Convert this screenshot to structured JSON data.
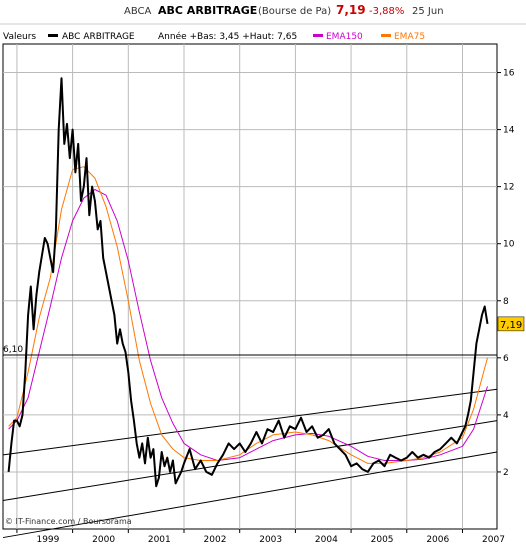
{
  "header": {
    "ticker": "ABCA",
    "name": "ABC ARBITRAGE",
    "market": "(Bourse de Pa)",
    "last": "7,19",
    "change": "-3,88%",
    "date": "25 Jun"
  },
  "legend": {
    "valeurs": "Valeurs",
    "series_name": "ABC ARBITRAGE",
    "range_text": "Année +Bas: 3,45 +Haut: 7,65",
    "ema150": "EMA150",
    "ema75": "EMA75"
  },
  "colors": {
    "price": "#000000",
    "ema150": "#cc00cc",
    "ema75": "#ff7700",
    "last_badge": "#ffcc00",
    "change": "#cc0000",
    "grid": "#999999",
    "header_bg": "#ffffff"
  },
  "credit": "© IT-Finance.com / Boursorama",
  "hline_label": "6,10",
  "last_badge": "7,19",
  "chart_data": {
    "type": "line",
    "x_unit": "year",
    "xlim": [
      1998.75,
      2007.62
    ],
    "ylim": [
      0,
      17
    ],
    "y_ticks": [
      "2",
      "4",
      "6",
      "8",
      "10",
      "12",
      "14",
      "16"
    ],
    "x_ticks": [
      "1999",
      "2000",
      "2001",
      "2002",
      "2003",
      "2004",
      "2005",
      "2006",
      "2007"
    ],
    "horizontal_line": 6.1,
    "grid": true,
    "series": [
      {
        "name": "ABC ARBITRAGE",
        "x": [
          1998.85,
          1998.9,
          1998.95,
          1999.0,
          1999.05,
          1999.1,
          1999.15,
          1999.2,
          1999.25,
          1999.3,
          1999.35,
          1999.4,
          1999.45,
          1999.5,
          1999.55,
          1999.6,
          1999.65,
          1999.7,
          1999.75,
          1999.8,
          1999.85,
          1999.9,
          1999.95,
          2000.0,
          2000.05,
          2000.1,
          2000.15,
          2000.2,
          2000.25,
          2000.3,
          2000.35,
          2000.4,
          2000.45,
          2000.5,
          2000.55,
          2000.6,
          2000.65,
          2000.7,
          2000.75,
          2000.8,
          2000.85,
          2000.9,
          2000.95,
          2001.0,
          2001.05,
          2001.1,
          2001.15,
          2001.2,
          2001.25,
          2001.3,
          2001.35,
          2001.4,
          2001.45,
          2001.5,
          2001.55,
          2001.6,
          2001.65,
          2001.7,
          2001.75,
          2001.8,
          2001.85,
          2001.9,
          2001.95,
          2002.0,
          2002.1,
          2002.2,
          2002.3,
          2002.4,
          2002.5,
          2002.6,
          2002.7,
          2002.8,
          2002.9,
          2003.0,
          2003.1,
          2003.2,
          2003.3,
          2003.4,
          2003.5,
          2003.6,
          2003.7,
          2003.8,
          2003.9,
          2004.0,
          2004.1,
          2004.2,
          2004.3,
          2004.4,
          2004.5,
          2004.6,
          2004.7,
          2004.8,
          2004.9,
          2005.0,
          2005.1,
          2005.2,
          2005.3,
          2005.4,
          2005.5,
          2005.6,
          2005.7,
          2005.8,
          2005.9,
          2006.0,
          2006.1,
          2006.2,
          2006.3,
          2006.4,
          2006.5,
          2006.6,
          2006.7,
          2006.8,
          2006.9,
          2007.0,
          2007.05,
          2007.1,
          2007.15,
          2007.2,
          2007.25,
          2007.3,
          2007.35,
          2007.4,
          2007.45
        ],
        "values": [
          2.0,
          3.0,
          3.8,
          3.8,
          3.6,
          4.0,
          5.5,
          7.5,
          8.5,
          7.0,
          8.2,
          9.0,
          9.6,
          10.2,
          10.0,
          9.5,
          9.0,
          10.5,
          14.0,
          15.8,
          13.5,
          14.2,
          13.0,
          14.0,
          12.5,
          13.5,
          11.5,
          12.0,
          13.0,
          11.0,
          12.0,
          11.5,
          10.5,
          10.8,
          9.5,
          9.0,
          8.5,
          8.0,
          7.5,
          6.5,
          7.0,
          6.5,
          6.2,
          5.5,
          4.5,
          3.8,
          3.0,
          2.5,
          3.0,
          2.3,
          3.2,
          2.5,
          2.8,
          1.5,
          1.8,
          2.7,
          2.2,
          2.5,
          2.0,
          2.4,
          1.6,
          1.8,
          2.0,
          2.3,
          2.8,
          2.1,
          2.4,
          2.0,
          1.9,
          2.3,
          2.6,
          3.0,
          2.8,
          3.0,
          2.7,
          3.0,
          3.4,
          3.0,
          3.5,
          3.4,
          3.8,
          3.2,
          3.6,
          3.5,
          3.9,
          3.4,
          3.6,
          3.2,
          3.3,
          3.5,
          3.0,
          2.8,
          2.6,
          2.2,
          2.3,
          2.1,
          2.0,
          2.3,
          2.4,
          2.2,
          2.6,
          2.5,
          2.4,
          2.5,
          2.7,
          2.5,
          2.6,
          2.5,
          2.7,
          2.8,
          3.0,
          3.2,
          3.0,
          3.4,
          3.6,
          4.0,
          4.5,
          5.5,
          6.5,
          7.0,
          7.5,
          7.8,
          7.19
        ]
      },
      {
        "name": "EMA150",
        "x": [
          1998.85,
          1999.0,
          1999.2,
          1999.4,
          1999.6,
          1999.8,
          2000.0,
          2000.2,
          2000.4,
          2000.6,
          2000.8,
          2001.0,
          2001.2,
          2001.4,
          2001.6,
          2001.8,
          2002.0,
          2002.3,
          2002.6,
          2003.0,
          2003.3,
          2003.6,
          2004.0,
          2004.3,
          2004.6,
          2005.0,
          2005.3,
          2005.6,
          2006.0,
          2006.3,
          2006.6,
          2007.0,
          2007.2,
          2007.45
        ],
        "values": [
          3.5,
          3.8,
          4.6,
          6.2,
          7.8,
          9.5,
          10.8,
          11.6,
          11.9,
          11.7,
          10.8,
          9.4,
          7.6,
          5.9,
          4.6,
          3.7,
          3.0,
          2.6,
          2.4,
          2.5,
          2.8,
          3.1,
          3.3,
          3.35,
          3.25,
          2.9,
          2.55,
          2.4,
          2.4,
          2.45,
          2.6,
          2.9,
          3.5,
          5.0
        ]
      },
      {
        "name": "EMA75",
        "x": [
          1998.85,
          1999.0,
          1999.2,
          1999.4,
          1999.6,
          1999.8,
          2000.0,
          2000.2,
          2000.4,
          2000.6,
          2000.8,
          2001.0,
          2001.2,
          2001.4,
          2001.6,
          2001.8,
          2002.0,
          2002.3,
          2002.6,
          2003.0,
          2003.3,
          2003.6,
          2004.0,
          2004.3,
          2004.6,
          2005.0,
          2005.3,
          2005.6,
          2006.0,
          2006.3,
          2006.6,
          2007.0,
          2007.2,
          2007.45
        ],
        "values": [
          3.6,
          3.9,
          5.5,
          7.4,
          8.8,
          11.2,
          12.6,
          12.7,
          12.3,
          11.3,
          9.9,
          8.0,
          5.9,
          4.4,
          3.3,
          2.8,
          2.5,
          2.4,
          2.4,
          2.6,
          3.0,
          3.3,
          3.4,
          3.3,
          3.1,
          2.6,
          2.3,
          2.3,
          2.4,
          2.5,
          2.7,
          3.2,
          4.2,
          6.0
        ]
      }
    ],
    "trendlines": [
      {
        "x": [
          1998.75,
          2007.62
        ],
        "y": [
          2.6,
          4.9
        ]
      },
      {
        "x": [
          1998.75,
          2007.62
        ],
        "y": [
          1.0,
          3.8
        ]
      },
      {
        "x": [
          1998.75,
          2007.62
        ],
        "y": [
          -0.3,
          2.7
        ]
      }
    ]
  }
}
